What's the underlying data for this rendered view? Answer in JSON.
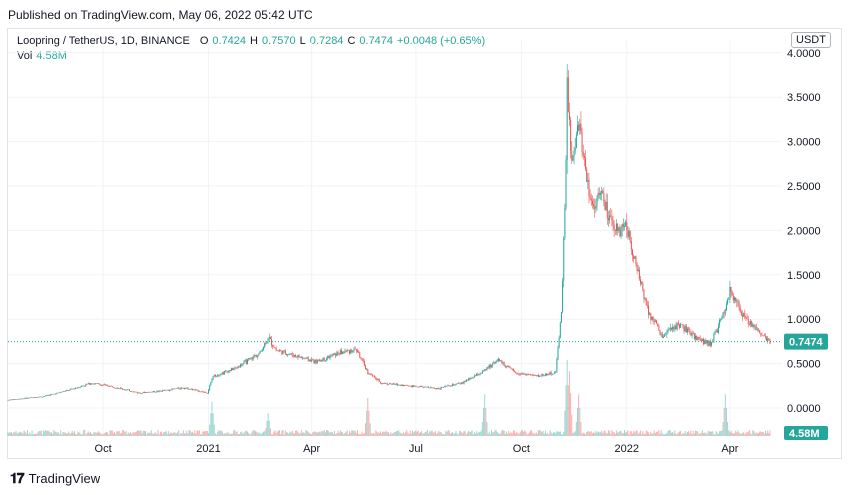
{
  "header": {
    "published": "Published on TradingView.com, May 06, 2022 05:42 UTC"
  },
  "legend": {
    "symbol": "Loopring / TetherUS, 1D, BINANCE",
    "open_label": "O",
    "open": "0.7424",
    "high_label": "H",
    "high": "0.7570",
    "low_label": "L",
    "low": "0.7284",
    "close_label": "C",
    "close": "0.7474",
    "change": "+0.0048 (+0.65%)",
    "vol_label": "Vol",
    "vol": "4.58M"
  },
  "currency": "USDT",
  "footer": {
    "brand": "TradingView"
  },
  "colors": {
    "up": "#26a69a",
    "down": "#ef5350",
    "grid": "#f0f3fa",
    "axis_text": "#131722"
  },
  "chart_data": {
    "type": "candlestick",
    "title": "Loopring / TetherUS, 1D, BINANCE",
    "xlabel": "",
    "ylabel": "",
    "y_ticks": [
      "0.0000",
      "0.5000",
      "1.0000",
      "1.5000",
      "2.0000",
      "2.5000",
      "3.0000",
      "3.5000",
      "4.0000"
    ],
    "ylim": [
      -0.25,
      4.05
    ],
    "x_ticks": [
      {
        "label": "Oct",
        "date": "2020-10-01"
      },
      {
        "label": "2021",
        "date": "2021-01-01"
      },
      {
        "label": "Apr",
        "date": "2021-04-01"
      },
      {
        "label": "Jul",
        "date": "2021-07-01"
      },
      {
        "label": "Oct",
        "date": "2021-10-01"
      },
      {
        "label": "2022",
        "date": "2022-01-01"
      },
      {
        "label": "Apr",
        "date": "2022-04-01"
      }
    ],
    "date_range": [
      "2020-07-10",
      "2022-05-06"
    ],
    "grid": true,
    "last_price": "0.7474",
    "last_volume": "4.58M",
    "price_path": [
      [
        "2020-07-10",
        0.09
      ],
      [
        "2020-08-10",
        0.13
      ],
      [
        "2020-09-01",
        0.2
      ],
      [
        "2020-09-20",
        0.28
      ],
      [
        "2020-10-10",
        0.24
      ],
      [
        "2020-11-01",
        0.17
      ],
      [
        "2020-11-20",
        0.19
      ],
      [
        "2020-12-10",
        0.23
      ],
      [
        "2020-12-31",
        0.17
      ],
      [
        "2021-01-05",
        0.36
      ],
      [
        "2021-01-25",
        0.45
      ],
      [
        "2021-02-15",
        0.62
      ],
      [
        "2021-02-22",
        0.8
      ],
      [
        "2021-03-01",
        0.65
      ],
      [
        "2021-03-20",
        0.58
      ],
      [
        "2021-04-05",
        0.52
      ],
      [
        "2021-04-25",
        0.62
      ],
      [
        "2021-05-10",
        0.66
      ],
      [
        "2021-05-20",
        0.4
      ],
      [
        "2021-06-01",
        0.28
      ],
      [
        "2021-06-25",
        0.25
      ],
      [
        "2021-07-20",
        0.22
      ],
      [
        "2021-08-10",
        0.28
      ],
      [
        "2021-08-30",
        0.42
      ],
      [
        "2021-09-10",
        0.55
      ],
      [
        "2021-09-25",
        0.4
      ],
      [
        "2021-10-15",
        0.36
      ],
      [
        "2021-10-31",
        0.4
      ],
      [
        "2021-11-05",
        1.1
      ],
      [
        "2021-11-08",
        2.2
      ],
      [
        "2021-11-10",
        3.6
      ],
      [
        "2021-11-14",
        2.7
      ],
      [
        "2021-11-20",
        3.2
      ],
      [
        "2021-12-01",
        2.3
      ],
      [
        "2021-12-10",
        2.4
      ],
      [
        "2021-12-20",
        2.0
      ],
      [
        "2022-01-01",
        2.05
      ],
      [
        "2022-01-10",
        1.55
      ],
      [
        "2022-01-20",
        1.1
      ],
      [
        "2022-02-01",
        0.8
      ],
      [
        "2022-02-15",
        0.95
      ],
      [
        "2022-03-01",
        0.8
      ],
      [
        "2022-03-15",
        0.72
      ],
      [
        "2022-03-25",
        1.0
      ],
      [
        "2022-04-01",
        1.3
      ],
      [
        "2022-04-15",
        1.0
      ],
      [
        "2022-05-06",
        0.7474
      ]
    ],
    "volume_spikes": [
      [
        "2021-01-04",
        0.45
      ],
      [
        "2021-02-22",
        0.3
      ],
      [
        "2021-05-20",
        0.5
      ],
      [
        "2021-08-30",
        0.55
      ],
      [
        "2021-11-10",
        1.0
      ],
      [
        "2021-11-12",
        0.85
      ],
      [
        "2021-11-20",
        0.55
      ],
      [
        "2022-03-28",
        0.55
      ]
    ]
  }
}
